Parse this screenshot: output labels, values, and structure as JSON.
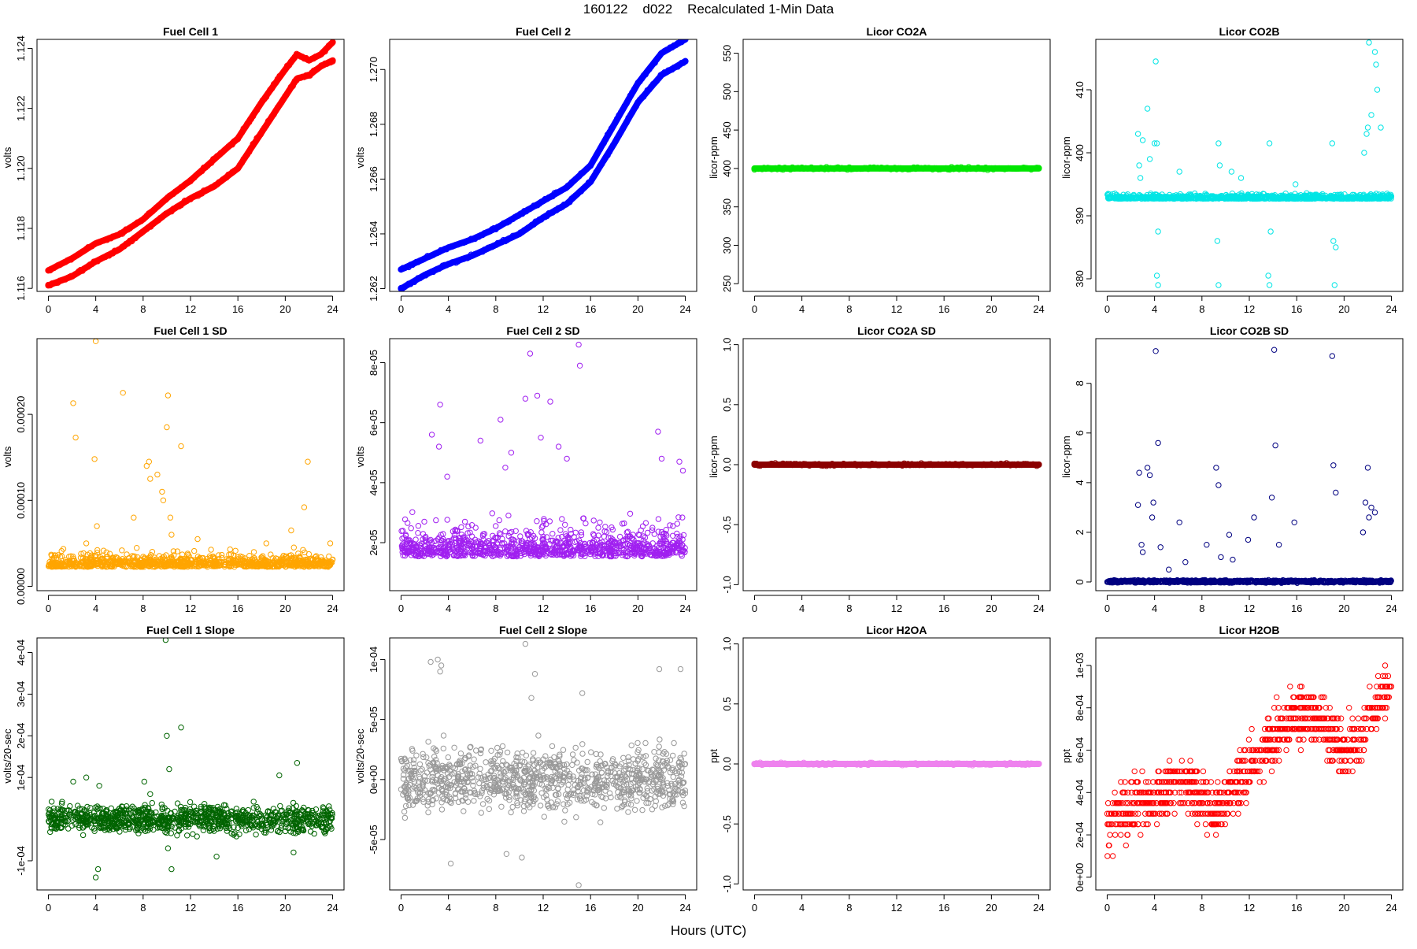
{
  "figure": {
    "title": "160122    d022    Recalculated 1-Min Data",
    "xlabel": "Hours (UTC)",
    "xticks": [
      "0",
      "4",
      "8",
      "12",
      "16",
      "20",
      "24"
    ]
  },
  "chart_data": [
    {
      "id": "fc1",
      "type": "scatter",
      "title": "Fuel Cell 1",
      "ylabel": "volts",
      "xlim": [
        0,
        24
      ],
      "ylim": [
        1.1159,
        1.1243
      ],
      "yticks": [
        1.116,
        1.118,
        1.12,
        1.122,
        1.124
      ],
      "ytick_labels": [
        "1.116",
        "1.118",
        "1.120",
        "1.122",
        "1.124"
      ],
      "color": "#ff0000",
      "marker": "dense-line",
      "series": [
        {
          "x": [
            0,
            2,
            4,
            6,
            8,
            10,
            12,
            14,
            16,
            18,
            20,
            21,
            22,
            23,
            24
          ],
          "y": [
            1.1166,
            1.117,
            1.1175,
            1.1178,
            1.1183,
            1.119,
            1.1196,
            1.1203,
            1.121,
            1.1222,
            1.1233,
            1.1238,
            1.1236,
            1.1238,
            1.1242
          ]
        },
        {
          "x": [
            0,
            2,
            4,
            6,
            8,
            10,
            12,
            14,
            16,
            18,
            20,
            21,
            22,
            23,
            24
          ],
          "y": [
            1.1161,
            1.1164,
            1.1169,
            1.1173,
            1.1179,
            1.1185,
            1.119,
            1.1194,
            1.12,
            1.1212,
            1.1224,
            1.123,
            1.1231,
            1.1234,
            1.1236
          ]
        }
      ]
    },
    {
      "id": "fc2",
      "type": "scatter",
      "title": "Fuel Cell 2",
      "ylabel": "volts",
      "xlim": [
        0,
        24
      ],
      "ylim": [
        1.2619,
        1.2711
      ],
      "yticks": [
        1.262,
        1.264,
        1.266,
        1.268,
        1.27
      ],
      "ytick_labels": [
        "1.262",
        "1.264",
        "1.266",
        "1.268",
        "1.270"
      ],
      "color": "#0000ff",
      "marker": "dense-line",
      "series": [
        {
          "x": [
            0,
            2,
            4,
            6,
            8,
            10,
            12,
            14,
            16,
            18,
            20,
            22,
            24
          ],
          "y": [
            1.2627,
            1.2631,
            1.2635,
            1.2638,
            1.2642,
            1.2647,
            1.2652,
            1.2657,
            1.2665,
            1.268,
            1.2695,
            1.2706,
            1.2711
          ]
        },
        {
          "x": [
            0,
            2,
            4,
            6,
            8,
            10,
            12,
            14,
            16,
            18,
            20,
            22,
            24
          ],
          "y": [
            1.262,
            1.2625,
            1.2629,
            1.2632,
            1.2636,
            1.264,
            1.2646,
            1.2651,
            1.2659,
            1.2673,
            1.2688,
            1.2698,
            1.2703
          ]
        }
      ]
    },
    {
      "id": "co2a",
      "type": "scatter",
      "title": "Licor CO2A",
      "ylabel": "licor-ppm",
      "xlim": [
        0,
        24
      ],
      "ylim": [
        240,
        568
      ],
      "yticks": [
        250,
        300,
        350,
        400,
        450,
        500,
        550
      ],
      "ytick_labels": [
        "250",
        "300",
        "350",
        "400",
        "450",
        "500",
        "550"
      ],
      "color": "#00e600",
      "marker": "dense-line",
      "series": [
        {
          "x": [
            0,
            24
          ],
          "y": [
            400,
            400
          ]
        }
      ]
    },
    {
      "id": "co2b",
      "type": "scatter",
      "title": "Licor CO2B",
      "ylabel": "licor-ppm",
      "xlim": [
        0,
        24
      ],
      "ylim": [
        378,
        418
      ],
      "yticks": [
        380,
        390,
        400,
        410
      ],
      "ytick_labels": [
        "380",
        "390",
        "400",
        "410"
      ],
      "color": "#00e5e5",
      "marker": "circle",
      "baseline": 392.8,
      "spread": 0.5,
      "outliers": [
        [
          2.6,
          403
        ],
        [
          2.7,
          398
        ],
        [
          2.8,
          396
        ],
        [
          3.0,
          402
        ],
        [
          3.4,
          407
        ],
        [
          3.6,
          399
        ],
        [
          4.0,
          401.5
        ],
        [
          4.1,
          414.5
        ],
        [
          4.2,
          401.5
        ],
        [
          4.3,
          387.5
        ],
        [
          4.3,
          379
        ],
        [
          4.2,
          380.5
        ],
        [
          6.1,
          397
        ],
        [
          9.4,
          401.5
        ],
        [
          9.4,
          379
        ],
        [
          9.3,
          386
        ],
        [
          9.5,
          398
        ],
        [
          10.5,
          397
        ],
        [
          11.3,
          396
        ],
        [
          13.7,
          401.5
        ],
        [
          13.8,
          387.5
        ],
        [
          13.7,
          379
        ],
        [
          13.6,
          380.5
        ],
        [
          15.9,
          395
        ],
        [
          19.0,
          401.5
        ],
        [
          19.1,
          386
        ],
        [
          19.2,
          379
        ],
        [
          19.3,
          385
        ],
        [
          21.7,
          400
        ],
        [
          21.9,
          403
        ],
        [
          22.0,
          404
        ],
        [
          22.1,
          417.5
        ],
        [
          22.3,
          406
        ],
        [
          22.6,
          416
        ],
        [
          22.7,
          414
        ],
        [
          22.8,
          410
        ],
        [
          23.1,
          404
        ]
      ]
    },
    {
      "id": "fc1sd",
      "type": "scatter",
      "title": "Fuel Cell 1 SD",
      "ylabel": "volts",
      "xlim": [
        0,
        24
      ],
      "ylim": [
        -5e-06,
        0.000288
      ],
      "yticks": [
        0,
        0.0001,
        0.0002
      ],
      "ytick_labels": [
        "0.00000",
        "0.00010",
        "0.00020"
      ],
      "color": "#ffa500",
      "marker": "circle",
      "baseline": 2.5e-05,
      "spread": 1.2e-05,
      "outliers": [
        [
          2.1,
          0.000213
        ],
        [
          2.3,
          0.000173
        ],
        [
          3.2,
          5e-05
        ],
        [
          3.9,
          0.000148
        ],
        [
          4.0,
          0.000285
        ],
        [
          4.1,
          7e-05
        ],
        [
          6.3,
          0.000225
        ],
        [
          7.2,
          8e-05
        ],
        [
          8.3,
          0.00014
        ],
        [
          8.5,
          0.000145
        ],
        [
          8.6,
          0.000125
        ],
        [
          9.2,
          0.00013
        ],
        [
          9.6,
          0.00011
        ],
        [
          9.7,
          0.0001
        ],
        [
          10.0,
          0.000185
        ],
        [
          10.1,
          0.000222
        ],
        [
          10.3,
          8e-05
        ],
        [
          10.4,
          6e-05
        ],
        [
          11.2,
          0.000163
        ],
        [
          12.6,
          5.5e-05
        ],
        [
          18.4,
          5e-05
        ],
        [
          20.5,
          6.5e-05
        ],
        [
          21.6,
          9.2e-05
        ],
        [
          21.9,
          0.000145
        ],
        [
          23.8,
          5e-05
        ]
      ]
    },
    {
      "id": "fc2sd",
      "type": "scatter",
      "title": "Fuel Cell 2 SD",
      "ylabel": "volts",
      "xlim": [
        0,
        24
      ],
      "ylim": [
        4e-06,
        8.8e-05
      ],
      "yticks": [
        2e-05,
        4e-05,
        6e-05,
        8e-05
      ],
      "ytick_labels": [
        "2e-05",
        "4e-05",
        "6e-05",
        "8e-05"
      ],
      "color": "#a020f0",
      "marker": "circle",
      "baseline": 1.7e-05,
      "spread": 8e-06,
      "outliers": [
        [
          2.6,
          5.6e-05
        ],
        [
          3.2,
          5.2e-05
        ],
        [
          3.3,
          6.6e-05
        ],
        [
          3.9,
          4.2e-05
        ],
        [
          6.7,
          5.4e-05
        ],
        [
          8.4,
          6.1e-05
        ],
        [
          8.8,
          4.5e-05
        ],
        [
          9.3,
          5e-05
        ],
        [
          10.5,
          6.8e-05
        ],
        [
          10.9,
          8.3e-05
        ],
        [
          11.5,
          6.9e-05
        ],
        [
          11.8,
          5.5e-05
        ],
        [
          12.6,
          6.7e-05
        ],
        [
          13.3,
          5.2e-05
        ],
        [
          14.0,
          4.8e-05
        ],
        [
          15.0,
          8.6e-05
        ],
        [
          15.1,
          7.9e-05
        ],
        [
          21.7,
          5.7e-05
        ],
        [
          22.0,
          4.8e-05
        ],
        [
          23.5,
          4.7e-05
        ],
        [
          23.8,
          4.4e-05
        ]
      ]
    },
    {
      "id": "co2asd",
      "type": "scatter",
      "title": "Licor CO2A SD",
      "ylabel": "licor-ppm",
      "xlim": [
        0,
        24
      ],
      "ylim": [
        -1.05,
        1.05
      ],
      "yticks": [
        -1,
        -0.5,
        0,
        0.5,
        1
      ],
      "ytick_labels": [
        "-1.0",
        "-0.5",
        "0.0",
        "0.5",
        "1.0"
      ],
      "color": "#8b0000",
      "marker": "dense-line",
      "series": [
        {
          "x": [
            0,
            24
          ],
          "y": [
            0,
            0
          ]
        }
      ]
    },
    {
      "id": "co2bsd",
      "type": "scatter",
      "title": "Licor CO2B SD",
      "ylabel": "licor-ppm",
      "xlim": [
        0,
        24
      ],
      "ylim": [
        -0.35,
        9.8
      ],
      "yticks": [
        0,
        2,
        4,
        6,
        8
      ],
      "ytick_labels": [
        "0",
        "2",
        "4",
        "6",
        "8"
      ],
      "color": "#000080",
      "marker": "circle",
      "baseline": 0.02,
      "spread": 0.04,
      "outliers": [
        [
          2.6,
          3.1
        ],
        [
          2.7,
          4.4
        ],
        [
          2.9,
          1.5
        ],
        [
          3.0,
          1.2
        ],
        [
          3.4,
          4.6
        ],
        [
          3.6,
          4.3
        ],
        [
          3.8,
          2.6
        ],
        [
          3.9,
          3.2
        ],
        [
          4.1,
          9.3
        ],
        [
          4.3,
          5.6
        ],
        [
          4.5,
          1.4
        ],
        [
          5.2,
          0.5
        ],
        [
          6.1,
          2.4
        ],
        [
          6.6,
          0.8
        ],
        [
          8.4,
          1.5
        ],
        [
          9.2,
          4.6
        ],
        [
          9.4,
          3.9
        ],
        [
          9.6,
          1.0
        ],
        [
          10.3,
          1.9
        ],
        [
          10.6,
          0.9
        ],
        [
          11.9,
          1.7
        ],
        [
          12.4,
          2.6
        ],
        [
          13.9,
          3.4
        ],
        [
          14.1,
          9.35
        ],
        [
          14.2,
          5.5
        ],
        [
          14.5,
          1.5
        ],
        [
          15.8,
          2.4
        ],
        [
          19.0,
          9.1
        ],
        [
          19.1,
          4.7
        ],
        [
          19.3,
          3.6
        ],
        [
          21.6,
          2.0
        ],
        [
          21.8,
          3.2
        ],
        [
          22.0,
          4.6
        ],
        [
          22.1,
          2.6
        ],
        [
          22.3,
          3.0
        ],
        [
          22.6,
          2.8
        ]
      ]
    },
    {
      "id": "fc1slope",
      "type": "scatter",
      "title": "Fuel Cell 1 Slope",
      "ylabel": "volts/20-sec",
      "xlim": [
        0,
        24
      ],
      "ylim": [
        -0.00017,
        0.000435
      ],
      "yticks": [
        -0.0001,
        0.0001,
        0.0002,
        0.0003,
        0.0004
      ],
      "ytick_labels": [
        "-1e-04",
        "1e-04",
        "2e-04",
        "3e-04",
        "4e-04"
      ],
      "color": "#006400",
      "marker": "circle",
      "baseline": 0.0,
      "spread": 2.8e-05,
      "outliers": [
        [
          2.1,
          9e-05
        ],
        [
          3.2,
          0.0001
        ],
        [
          4.0,
          -0.00014
        ],
        [
          4.2,
          -0.00012
        ],
        [
          4.3,
          8e-05
        ],
        [
          8.1,
          9e-05
        ],
        [
          8.6,
          6e-05
        ],
        [
          9.9,
          0.00043
        ],
        [
          10.0,
          0.0002
        ],
        [
          10.2,
          0.00012
        ],
        [
          10.4,
          -0.00012
        ],
        [
          10.1,
          -7e-05
        ],
        [
          11.2,
          0.00022
        ],
        [
          14.2,
          -9e-05
        ],
        [
          19.5,
          0.000105
        ],
        [
          21.0,
          0.000135
        ],
        [
          20.7,
          -8e-05
        ]
      ]
    },
    {
      "id": "fc2slope",
      "type": "scatter",
      "title": "Fuel Cell 2 Slope",
      "ylabel": "volts/20-sec",
      "xlim": [
        0,
        24
      ],
      "ylim": [
        -9.2e-05,
        0.000118
      ],
      "yticks": [
        -5e-05,
        0,
        5e-05,
        0.0001
      ],
      "ytick_labels": [
        "-5e-05",
        "0e+00",
        "5e-05",
        "1e-04"
      ],
      "color": "#999999",
      "marker": "circle",
      "baseline": 0.0,
      "spread": 2.2e-05,
      "outliers": [
        [
          2.5,
          9.8e-05
        ],
        [
          3.1,
          0.0001
        ],
        [
          3.3,
          9e-05
        ],
        [
          3.4,
          9.5e-05
        ],
        [
          4.2,
          -7e-05
        ],
        [
          10.5,
          0.000113
        ],
        [
          11.3,
          8.8e-05
        ],
        [
          11.0,
          6.8e-05
        ],
        [
          15.0,
          -8.8e-05
        ],
        [
          15.3,
          7.2e-05
        ],
        [
          21.8,
          9.2e-05
        ],
        [
          23.6,
          9.2e-05
        ],
        [
          8.9,
          -6.2e-05
        ],
        [
          10.2,
          -6.5e-05
        ]
      ]
    },
    {
      "id": "h2oa",
      "type": "scatter",
      "title": "Licor H2OA",
      "ylabel": "ppt",
      "xlim": [
        0,
        24
      ],
      "ylim": [
        -1.05,
        1.05
      ],
      "yticks": [
        -1,
        -0.5,
        0,
        0.5,
        1
      ],
      "ytick_labels": [
        "-1.0",
        "-0.5",
        "0.0",
        "0.5",
        "1.0"
      ],
      "color": "#ee82ee",
      "marker": "dense-line",
      "series": [
        {
          "x": [
            0,
            24
          ],
          "y": [
            0,
            0
          ]
        }
      ]
    },
    {
      "id": "h2ob",
      "type": "scatter",
      "title": "Licor H2OB",
      "ylabel": "ppt",
      "xlim": [
        0,
        24
      ],
      "ylim": [
        -6e-05,
        0.00113
      ],
      "yticks": [
        0,
        0.0002,
        0.0004,
        0.0006,
        0.0008,
        0.001
      ],
      "ytick_labels": [
        "0e+00",
        "2e-04",
        "4e-04",
        "6e-04",
        "8e-04",
        "1e-03"
      ],
      "color": "#ff0000",
      "marker": "circle-quantized",
      "trend": {
        "x": [
          0,
          2,
          4,
          6,
          8,
          9,
          12,
          14,
          16,
          18,
          19,
          20,
          22,
          24
        ],
        "y": [
          0.00025,
          0.00035,
          0.00037,
          0.00045,
          0.00038,
          0.0003,
          0.00052,
          0.00065,
          0.00078,
          0.00075,
          0.00068,
          0.00058,
          0.00072,
          0.00092
        ]
      },
      "spread": 0.00011,
      "step": 5e-05
    }
  ]
}
